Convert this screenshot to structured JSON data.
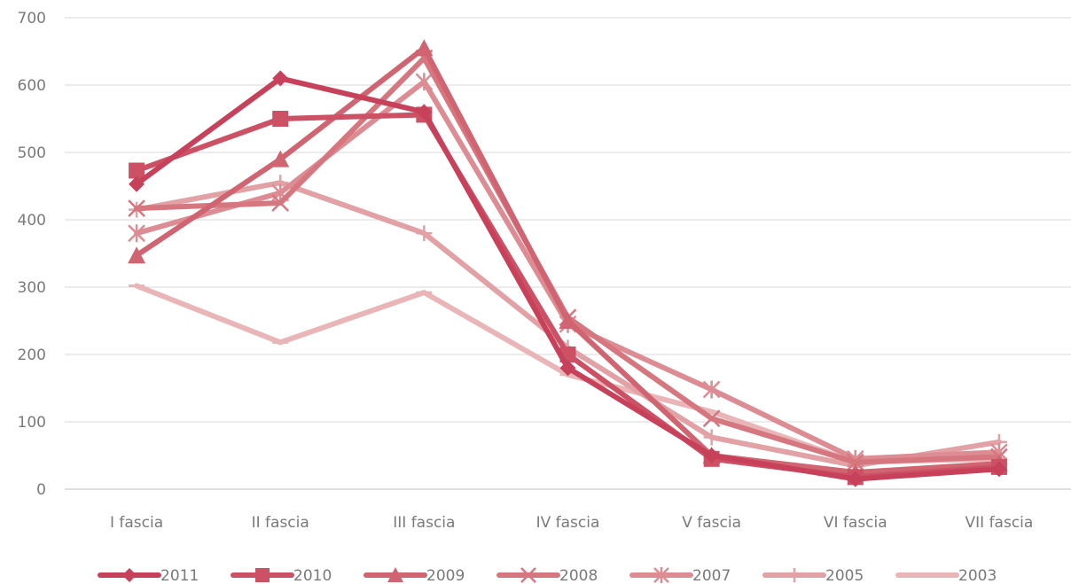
{
  "chart_data": {
    "type": "line",
    "title": "",
    "xlabel": "",
    "ylabel": "",
    "categories": [
      "I fascia",
      "II fascia",
      "III fascia",
      "IV fascia",
      "V fascia",
      "VI fascia",
      "VII fascia"
    ],
    "ylim": [
      0,
      700
    ],
    "yticks": [
      0,
      100,
      200,
      300,
      400,
      500,
      600,
      700
    ],
    "grid": "horizontal",
    "legend": "bottom",
    "series": [
      {
        "name": "2011",
        "marker": "diamond",
        "color": "#c8415a",
        "values": [
          453,
          610,
          560,
          180,
          50,
          15,
          30
        ]
      },
      {
        "name": "2010",
        "marker": "square",
        "color": "#cc5164",
        "values": [
          473,
          550,
          556,
          200,
          45,
          18,
          33
        ]
      },
      {
        "name": "2009",
        "marker": "triangle",
        "color": "#d06470",
        "values": [
          347,
          490,
          655,
          250,
          50,
          25,
          38
        ]
      },
      {
        "name": "2008",
        "marker": "x",
        "color": "#d6767f",
        "values": [
          417,
          425,
          640,
          255,
          105,
          40,
          48
        ]
      },
      {
        "name": "2007",
        "marker": "star",
        "color": "#dd8c93",
        "values": [
          380,
          440,
          605,
          245,
          148,
          45,
          55
        ]
      },
      {
        "name": "2005",
        "marker": "plus",
        "color": "#e2a1a5",
        "values": [
          415,
          455,
          380,
          210,
          77,
          35,
          70
        ]
      },
      {
        "name": "2003",
        "marker": "dash",
        "color": "#e9b5b7",
        "values": [
          302,
          218,
          292,
          170,
          115,
          40,
          45
        ]
      }
    ]
  }
}
